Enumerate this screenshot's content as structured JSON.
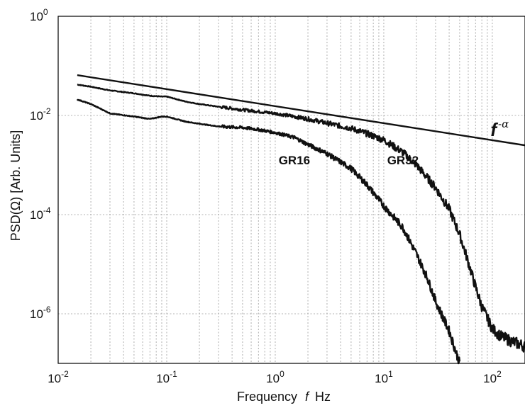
{
  "chart_data": {
    "type": "line",
    "title": "",
    "xlabel": "Frequency  f  Hz",
    "xlabel_parts": [
      "Frequency ",
      "f",
      " Hz"
    ],
    "ylabel": "PSD(Ω)  [Arb. Units]",
    "xscale": "log",
    "yscale": "log",
    "xlim": [
      0.01,
      200
    ],
    "ylim": [
      1e-07,
      1
    ],
    "grid": true,
    "x_ticks": [
      {
        "base": "10",
        "exp": "-2"
      },
      {
        "base": "10",
        "exp": "-1"
      },
      {
        "base": "10",
        "exp": "0"
      },
      {
        "base": "10",
        "exp": "1"
      },
      {
        "base": "10",
        "exp": "2"
      }
    ],
    "y_ticks": [
      {
        "base": "10",
        "exp": "0"
      },
      {
        "base": "10",
        "exp": "-2"
      },
      {
        "base": "10",
        "exp": "-4"
      },
      {
        "base": "10",
        "exp": "-6"
      }
    ],
    "series": [
      {
        "name": "GR32",
        "label_position_f": 15,
        "x": [
          0.015,
          0.02,
          0.03,
          0.05,
          0.07,
          0.09,
          0.1,
          0.15,
          0.2,
          0.3,
          0.5,
          0.7,
          1,
          1.5,
          2,
          3,
          5,
          7,
          10,
          15,
          20,
          30,
          40,
          50,
          60,
          70,
          80,
          100,
          120,
          150,
          200
        ],
        "y": [
          0.042,
          0.038,
          0.032,
          0.028,
          0.025,
          0.024,
          0.024,
          0.019,
          0.017,
          0.015,
          0.013,
          0.012,
          0.011,
          0.0095,
          0.0085,
          0.007,
          0.0055,
          0.0043,
          0.0032,
          0.0018,
          0.001,
          0.00035,
          0.00013,
          4e-05,
          1.1e-05,
          3.5e-06,
          1.4e-06,
          5e-07,
          3.5e-07,
          2.8e-07,
          2.2e-07
        ]
      },
      {
        "name": "GR16",
        "label_position_f": 1.5,
        "x": [
          0.015,
          0.02,
          0.03,
          0.05,
          0.07,
          0.09,
          0.1,
          0.15,
          0.2,
          0.3,
          0.5,
          0.7,
          1,
          1.5,
          2,
          3,
          5,
          7,
          10,
          15,
          20,
          25,
          30,
          40,
          50
        ],
        "y": [
          0.021,
          0.017,
          0.011,
          0.0095,
          0.0085,
          0.0095,
          0.0095,
          0.0075,
          0.0068,
          0.006,
          0.0057,
          0.0052,
          0.0045,
          0.0036,
          0.0026,
          0.0017,
          0.00085,
          0.0004,
          0.00015,
          5.5e-05,
          1.6e-05,
          5.5e-06,
          1.8e-06,
          4.5e-07,
          1e-07
        ]
      }
    ],
    "reference_line": {
      "label_base": "f",
      "label_exp": "-α",
      "label_position_f": 130,
      "x": [
        0.015,
        200
      ],
      "y": [
        0.065,
        0.0025
      ]
    }
  }
}
